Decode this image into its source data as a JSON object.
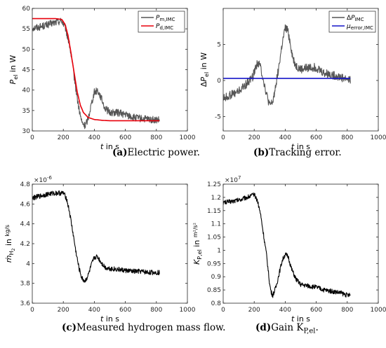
{
  "captions": [
    {
      "tag": "(a)",
      "text": "Electric power."
    },
    {
      "tag": "(b)",
      "text": "Tracking error."
    },
    {
      "tag": "(c)",
      "text": "Measured hydrogen mass flow."
    },
    {
      "tag": "(d)",
      "text": "Gain K",
      "sub": "P,el",
      "tail": "."
    }
  ],
  "chart_data": [
    {
      "type": "line",
      "panel": "a",
      "xlabel": "t in s",
      "ylabel": "P_el in W",
      "xlim": [
        0,
        1000
      ],
      "ylim": [
        30,
        60
      ],
      "xticks": [
        0,
        200,
        400,
        600,
        800,
        1000
      ],
      "yticks": [
        30,
        35,
        40,
        45,
        50,
        55,
        60
      ],
      "grid": false,
      "legend_position": "top-right",
      "series": [
        {
          "name": "P_m,IMC",
          "color": "#555555",
          "noise": 0.9,
          "x": [
            0,
            50,
            100,
            150,
            190,
            215,
            240,
            260,
            280,
            300,
            320,
            340,
            360,
            380,
            400,
            420,
            440,
            470,
            500,
            550,
            600,
            650,
            700,
            750,
            800,
            820
          ],
          "y": [
            55.2,
            55.5,
            56.0,
            56.6,
            57.0,
            55.0,
            51.0,
            46.0,
            40.5,
            35.5,
            32.0,
            31.2,
            33.0,
            36.5,
            39.5,
            40.0,
            38.5,
            35.5,
            34.5,
            34.5,
            34.0,
            33.3,
            33.0,
            32.8,
            32.6,
            32.6
          ]
        },
        {
          "name": "P_d,IMC",
          "color": "#e8000b",
          "noise": 0,
          "x": [
            0,
            150,
            190,
            210,
            230,
            250,
            270,
            290,
            310,
            330,
            360,
            400,
            450,
            500,
            600,
            700,
            820
          ],
          "y": [
            57.5,
            57.5,
            57.3,
            56.2,
            53.5,
            49.0,
            44.2,
            39.5,
            36.3,
            34.5,
            33.3,
            32.8,
            32.6,
            32.5,
            32.5,
            32.5,
            32.5
          ]
        }
      ]
    },
    {
      "type": "line",
      "panel": "b",
      "xlabel": "t in s",
      "ylabel": "ΔP_el in W",
      "xlim": [
        0,
        1000
      ],
      "ylim": [
        -7,
        10
      ],
      "xticks": [
        0,
        200,
        400,
        600,
        800,
        1000
      ],
      "yticks": [
        -5,
        0,
        5
      ],
      "grid": false,
      "legend_position": "top-right",
      "series": [
        {
          "name": "ΔP_IMC",
          "color": "#555555",
          "noise": 0.6,
          "x": [
            0,
            50,
            100,
            150,
            190,
            220,
            240,
            260,
            280,
            300,
            320,
            340,
            360,
            380,
            400,
            415,
            430,
            450,
            470,
            500,
            550,
            600,
            650,
            700,
            750,
            800,
            820
          ],
          "y": [
            -2.5,
            -2.0,
            -1.5,
            -0.5,
            0.5,
            2.5,
            2.0,
            0.0,
            -2.0,
            -3.5,
            -3.0,
            -0.5,
            2.0,
            5.0,
            7.2,
            7.0,
            5.5,
            3.0,
            2.0,
            1.5,
            1.8,
            1.8,
            1.0,
            0.8,
            0.5,
            0.2,
            0.1
          ]
        },
        {
          "name": "μ_error,IMC",
          "color": "#1414c8",
          "noise": 0,
          "x": [
            0,
            820
          ],
          "y": [
            0.3,
            0.3
          ]
        }
      ]
    },
    {
      "type": "line",
      "panel": "c",
      "xlabel": "t in s",
      "ylabel": "ṁ_H2 in kg/s",
      "axis_multiplier": "×10^-6",
      "xlim": [
        0,
        1000
      ],
      "ylim": [
        3.6,
        4.8
      ],
      "xticks": [
        0,
        200,
        400,
        600,
        800,
        1000
      ],
      "yticks": [
        3.6,
        3.8,
        4.0,
        4.2,
        4.4,
        4.6,
        4.8
      ],
      "grid": false,
      "series": [
        {
          "name": "",
          "color": "#000000",
          "noise": 0.025,
          "x": [
            0,
            50,
            100,
            150,
            200,
            220,
            240,
            260,
            280,
            300,
            320,
            340,
            360,
            380,
            400,
            420,
            440,
            470,
            500,
            550,
            600,
            650,
            700,
            750,
            800,
            820
          ],
          "y": [
            4.66,
            4.68,
            4.7,
            4.71,
            4.71,
            4.66,
            4.52,
            4.33,
            4.13,
            3.96,
            3.85,
            3.82,
            3.88,
            3.98,
            4.06,
            4.07,
            4.02,
            3.96,
            3.95,
            3.94,
            3.93,
            3.92,
            3.92,
            3.91,
            3.91,
            3.91
          ]
        }
      ]
    },
    {
      "type": "line",
      "panel": "d",
      "xlabel": "t in s",
      "ylabel": "K_P,el in m²/s²",
      "axis_multiplier": "×10^7",
      "xlim": [
        0,
        1000
      ],
      "ylim": [
        0.8,
        1.25
      ],
      "xticks": [
        0,
        200,
        400,
        600,
        800,
        1000
      ],
      "yticks": [
        0.8,
        0.85,
        0.9,
        0.95,
        1.0,
        1.05,
        1.1,
        1.15,
        1.2,
        1.25
      ],
      "grid": false,
      "series": [
        {
          "name": "",
          "color": "#000000",
          "noise": 0.009,
          "x": [
            0,
            50,
            100,
            150,
            200,
            220,
            240,
            260,
            280,
            300,
            310,
            320,
            340,
            360,
            380,
            400,
            420,
            440,
            470,
            500,
            550,
            600,
            650,
            700,
            750,
            800,
            820
          ],
          "y": [
            1.18,
            1.185,
            1.19,
            1.2,
            1.21,
            1.19,
            1.14,
            1.06,
            0.98,
            0.87,
            0.84,
            0.83,
            0.86,
            0.91,
            0.96,
            0.985,
            0.975,
            0.93,
            0.89,
            0.87,
            0.865,
            0.86,
            0.85,
            0.845,
            0.84,
            0.83,
            0.83
          ]
        }
      ]
    }
  ]
}
